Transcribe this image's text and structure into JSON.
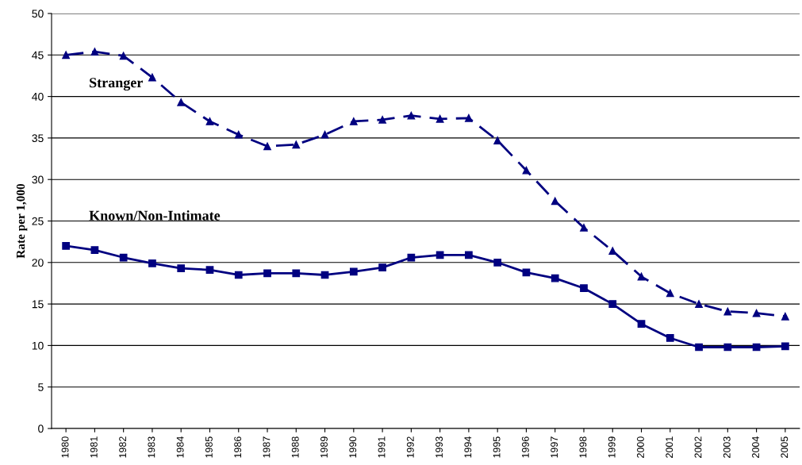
{
  "chart_data": {
    "type": "line",
    "ylabel": "Rate per 1,000",
    "categories": [
      "1980",
      "1981",
      "1982",
      "1983",
      "1984",
      "1985",
      "1986",
      "1987",
      "1988",
      "1989",
      "1990",
      "1991",
      "1992",
      "1993",
      "1994",
      "1995",
      "1996",
      "1997",
      "1998",
      "1999",
      "2000",
      "2001",
      "2002",
      "2003",
      "2004",
      "2005"
    ],
    "series": [
      {
        "name": "Stranger",
        "color": "#000080",
        "marker": "triangle",
        "line_style": "dashed",
        "values": [
          45.0,
          45.4,
          44.9,
          42.3,
          39.3,
          37.0,
          35.4,
          34.0,
          34.2,
          35.4,
          37.0,
          37.2,
          37.7,
          37.3,
          37.4,
          34.7,
          31.1,
          27.4,
          24.2,
          21.4,
          18.3,
          16.3,
          15.0,
          14.1,
          13.9,
          13.5
        ]
      },
      {
        "name": "Known/Non-Intimate",
        "color": "#000080",
        "marker": "square",
        "line_style": "solid",
        "values": [
          22.0,
          21.5,
          20.6,
          19.9,
          19.3,
          19.1,
          18.5,
          18.7,
          18.7,
          18.5,
          18.9,
          19.4,
          20.6,
          20.9,
          20.9,
          20.0,
          18.8,
          18.1,
          16.9,
          15.0,
          12.6,
          10.9,
          9.8,
          9.8,
          9.8,
          9.9
        ]
      }
    ],
    "ylim": [
      0,
      50
    ],
    "yticks": [
      0,
      5,
      10,
      15,
      20,
      25,
      30,
      35,
      40,
      45,
      50
    ],
    "grid": "y",
    "legend": false
  }
}
